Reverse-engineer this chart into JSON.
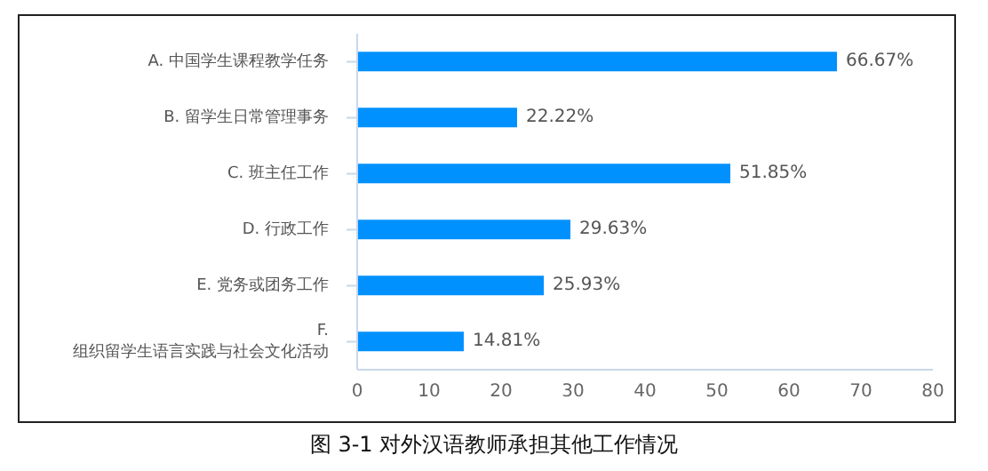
{
  "chart_data": {
    "type": "bar",
    "orientation": "horizontal",
    "categories": [
      "A. 中国学生课程教学任务",
      "B. 留学生日常管理事务",
      "C. 班主任工作",
      "D. 行政工作",
      "E. 党务或团务工作",
      "F.\n组织留学生语言实践与社会文化活动"
    ],
    "values": [
      66.67,
      22.22,
      51.85,
      29.63,
      25.93,
      14.81
    ],
    "value_labels": [
      "66.67%",
      "22.22%",
      "51.85%",
      "29.63%",
      "25.93%",
      "14.81%"
    ],
    "color": "#0091ff",
    "xlim": [
      0,
      80
    ],
    "xticks": [
      0,
      10,
      20,
      30,
      40,
      50,
      60,
      70,
      80
    ],
    "grid": false,
    "annotations": [
      "图 3-1 对外汉语教师承担其他工作情况"
    ]
  }
}
